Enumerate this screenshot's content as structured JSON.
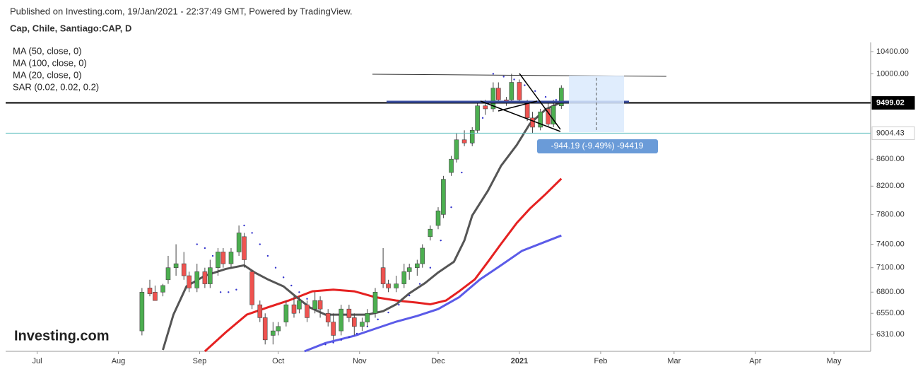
{
  "header": {
    "published": "Published on Investing.com, 19/Jan/2021 - 22:37:49 GMT, Powered by TradingView.",
    "symbol": "Cap, Chile, Santiago:CAP, D"
  },
  "chart_data": {
    "type": "candlestick",
    "logo": "Investing.com",
    "log_scale": true,
    "up_color": "#4caf50",
    "down_color": "#ef5350",
    "xlim": [
      -12,
      318
    ],
    "xticks": [
      {
        "value": 0,
        "label": "Jul"
      },
      {
        "value": 31,
        "label": "Aug"
      },
      {
        "value": 62,
        "label": "Sep"
      },
      {
        "value": 92,
        "label": "Oct"
      },
      {
        "value": 123,
        "label": "Nov"
      },
      {
        "value": 153,
        "label": "Dec"
      },
      {
        "value": 184,
        "label": "2021"
      },
      {
        "value": 215,
        "label": "Feb"
      },
      {
        "value": 243,
        "label": "Mar"
      },
      {
        "value": 274,
        "label": "Apr"
      },
      {
        "value": 304,
        "label": "May"
      }
    ],
    "ylim": [
      6125,
      10570
    ],
    "yticks": [
      {
        "value": 6310,
        "label": "6310.00"
      },
      {
        "value": 6550,
        "label": "6550.00"
      },
      {
        "value": 6800,
        "label": "6800.00"
      },
      {
        "value": 7100,
        "label": "7100.00"
      },
      {
        "value": 7400,
        "label": "7400.00"
      },
      {
        "value": 7800,
        "label": "7800.00"
      },
      {
        "value": 8200,
        "label": "8200.00"
      },
      {
        "value": 8600,
        "label": "8600.00"
      },
      {
        "value": 10000,
        "label": "10000.00"
      },
      {
        "value": 10400,
        "label": "10400.00"
      }
    ],
    "candles": {
      "x": [
        40,
        43,
        45,
        48,
        50,
        53,
        56,
        58,
        61,
        64,
        66,
        69,
        71,
        74,
        77,
        79,
        82,
        85,
        87,
        90,
        92,
        95,
        98,
        100,
        103,
        106,
        108,
        111,
        113,
        116,
        119,
        121,
        124,
        126,
        129,
        132,
        134,
        137,
        140,
        142,
        145,
        147,
        150,
        153,
        155,
        158,
        160,
        163,
        166,
        168,
        171,
        174,
        176,
        179,
        181,
        184,
        187,
        189,
        192,
        195,
        197,
        200
      ],
      "open": [
        6350,
        6850,
        6800,
        6800,
        6950,
        7100,
        7150,
        7000,
        6850,
        7050,
        6900,
        7100,
        7300,
        7150,
        7300,
        7500,
        7050,
        6650,
        6500,
        6300,
        6350,
        6450,
        6650,
        6600,
        6650,
        6600,
        6700,
        6550,
        6450,
        6350,
        6600,
        6500,
        6400,
        6450,
        6550,
        7100,
        6900,
        6850,
        6900,
        7050,
        7100,
        7150,
        7500,
        7650,
        7800,
        8400,
        8600,
        8900,
        8850,
        9050,
        9450,
        9400,
        9750,
        9550,
        9550,
        9850,
        9500,
        9250,
        9100,
        9400,
        9150,
        9450
      ],
      "high": [
        6850,
        6950,
        6880,
        6900,
        7250,
        7400,
        7300,
        7050,
        7150,
        7100,
        7200,
        7350,
        7350,
        7350,
        7650,
        7550,
        7050,
        6700,
        6550,
        6450,
        6450,
        6700,
        6750,
        6750,
        6700,
        6800,
        6750,
        6600,
        6550,
        6650,
        6650,
        6550,
        6500,
        6600,
        6850,
        7350,
        6950,
        7000,
        7150,
        7150,
        7200,
        7400,
        7650,
        7900,
        8350,
        8650,
        9000,
        9050,
        9100,
        9500,
        9550,
        9850,
        9850,
        9600,
        10000,
        9900,
        9550,
        9350,
        9400,
        9500,
        9550,
        9800
      ],
      "low": [
        6300,
        6750,
        6700,
        6750,
        6900,
        7000,
        6950,
        6800,
        6800,
        6850,
        6850,
        7000,
        7100,
        7100,
        7250,
        7100,
        6600,
        6450,
        6200,
        6200,
        6300,
        6400,
        6500,
        6550,
        6450,
        6550,
        6500,
        6400,
        6250,
        6300,
        6450,
        6300,
        6350,
        6400,
        6500,
        6850,
        6800,
        6800,
        6850,
        6950,
        7000,
        7100,
        7450,
        7600,
        7750,
        8350,
        8550,
        8800,
        8800,
        9000,
        9300,
        9350,
        9500,
        9450,
        9500,
        9500,
        9200,
        9000,
        9050,
        9100,
        9100,
        9400
      ],
      "close": [
        6800,
        6780,
        6700,
        6880,
        7100,
        7150,
        7000,
        6850,
        7050,
        6900,
        7100,
        7300,
        7150,
        7300,
        7550,
        7200,
        6650,
        6500,
        6250,
        6350,
        6400,
        6650,
        6550,
        6700,
        6500,
        6700,
        6600,
        6450,
        6300,
        6600,
        6500,
        6400,
        6450,
        6550,
        6800,
        6900,
        6850,
        6900,
        7050,
        7100,
        7150,
        7350,
        7600,
        7850,
        8300,
        8600,
        8900,
        8850,
        9050,
        9450,
        9400,
        9750,
        9550,
        9500,
        9850,
        9550,
        9250,
        9100,
        9350,
        9150,
        9450,
        9750
      ]
    },
    "series": [
      {
        "name": "MA (50, close, 0)",
        "color": "#e52121",
        "x": [
          64,
          72,
          80,
          88,
          96,
          105,
          113,
          121,
          129,
          137,
          145,
          150,
          156,
          161,
          167,
          172,
          177,
          183,
          188,
          194,
          200
        ],
        "values": [
          6125,
          6335,
          6535,
          6620,
          6700,
          6810,
          6830,
          6810,
          6740,
          6700,
          6675,
          6655,
          6700,
          6810,
          6955,
          7175,
          7405,
          7685,
          7880,
          8085,
          8310
        ]
      },
      {
        "name": "MA (100, close, 0)",
        "color": "#5b5be8",
        "x": [
          102,
          110,
          121,
          129,
          137,
          145,
          153,
          161,
          169,
          177,
          185,
          194,
          200
        ],
        "values": [
          6125,
          6215,
          6295,
          6375,
          6455,
          6520,
          6600,
          6740,
          6955,
          7130,
          7315,
          7435,
          7515
        ]
      },
      {
        "name": "MA (20, close, 0)",
        "color": "#555555",
        "x": [
          48,
          52,
          57,
          64,
          72,
          79,
          83,
          88,
          94,
          99,
          104,
          110,
          115,
          121,
          126,
          132,
          137,
          142,
          148,
          153,
          159,
          163,
          166,
          172,
          177,
          183,
          188,
          194,
          200
        ],
        "values": [
          6140,
          6535,
          6870,
          7000,
          7085,
          7130,
          7040,
          6955,
          6870,
          6740,
          6620,
          6535,
          6535,
          6535,
          6535,
          6575,
          6655,
          6785,
          6910,
          7040,
          7175,
          7450,
          7785,
          8135,
          8500,
          8820,
          9155,
          9390,
          9510
        ]
      },
      {
        "name": "SAR (0.02, 0.02, 0.2)",
        "color": "#3333cc",
        "x": [
          61,
          64,
          67,
          70,
          73,
          76,
          79,
          82,
          85,
          88,
          91,
          94,
          97,
          100,
          103,
          106,
          110,
          113,
          116,
          119,
          122,
          126,
          130,
          134,
          138,
          142,
          146,
          150,
          154,
          158,
          162,
          166,
          170,
          174,
          178,
          182,
          186,
          190,
          194,
          198
        ],
        "values": [
          7400,
          7350,
          7250,
          6800,
          6800,
          6830,
          7650,
          7550,
          7400,
          7250,
          7100,
          6980,
          6880,
          6800,
          6720,
          6650,
          6200,
          6220,
          6250,
          6280,
          6320,
          6400,
          6480,
          6560,
          6650,
          6760,
          6900,
          7100,
          7450,
          7900,
          8400,
          8850,
          9250,
          10000,
          9950,
          9900,
          9800,
          9700,
          9600,
          9550
        ]
      }
    ],
    "price_lines": [
      {
        "value": 9499.02,
        "color": "#000000"
      },
      {
        "value": 9004.43,
        "color": "#5fbfbf"
      }
    ],
    "measure": "-944.19 (-9.49%) -94419"
  }
}
